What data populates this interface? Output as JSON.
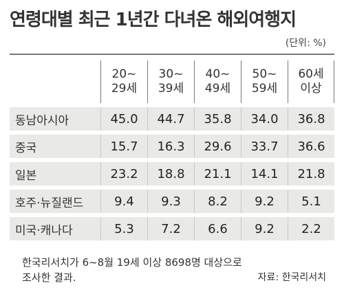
{
  "chart_data": {
    "type": "table",
    "title": "연령대별 최근 1년간 다녀온 해외여행지",
    "unit": "(단위: %)",
    "columns": [
      [
        "20~",
        "29세"
      ],
      [
        "30~",
        "39세"
      ],
      [
        "40~",
        "49세"
      ],
      [
        "50~",
        "59세"
      ],
      [
        "60세",
        "이상"
      ]
    ],
    "rows": [
      {
        "label": "동남아시아",
        "values": [
          "45.0",
          "44.7",
          "35.8",
          "34.0",
          "36.8"
        ]
      },
      {
        "label": "중국",
        "values": [
          "15.7",
          "16.3",
          "29.6",
          "33.7",
          "36.6"
        ]
      },
      {
        "label": "일본",
        "values": [
          "23.2",
          "18.8",
          "21.1",
          "14.1",
          "21.8"
        ]
      },
      {
        "label": "호주·뉴질랜드",
        "values": [
          "9.4",
          "9.3",
          "8.2",
          "9.2",
          "5.1"
        ]
      },
      {
        "label": "미국·캐나다",
        "values": [
          "5.3",
          "7.2",
          "6.6",
          "9.2",
          "2.2"
        ]
      }
    ],
    "footnote": [
      "한국리서치가 6~8월 19세 이상 8698명 대상으로",
      "조사한 결과."
    ],
    "source": "자료: 한국리서치"
  }
}
